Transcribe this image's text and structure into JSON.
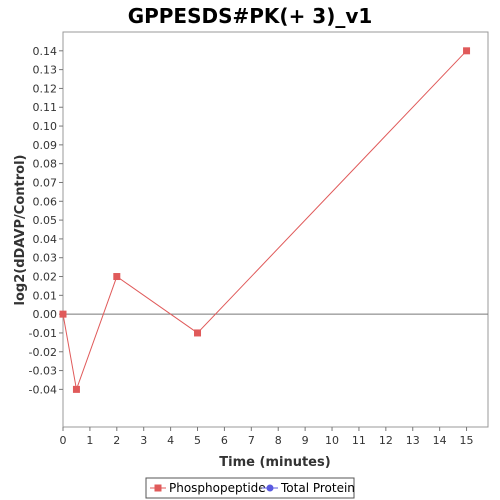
{
  "chart_data": {
    "type": "line",
    "title": "GPPESDS#PK(+ 3)_v1",
    "xlabel": "Time (minutes)",
    "ylabel": "log2(dDAVP/Control)",
    "xlim": [
      0,
      16
    ],
    "ylim": [
      -0.05,
      0.15
    ],
    "x_ticks": [
      0,
      1,
      2,
      3,
      4,
      5,
      6,
      7,
      8,
      9,
      10,
      11,
      12,
      13,
      14,
      15
    ],
    "y_ticks": [
      -0.04,
      -0.03,
      -0.02,
      -0.01,
      0.0,
      0.01,
      0.02,
      0.03,
      0.04,
      0.05,
      0.06,
      0.07,
      0.08,
      0.09,
      0.1,
      0.11,
      0.12,
      0.13,
      0.14
    ],
    "grid": false,
    "legend_position": "bottom",
    "series": [
      {
        "name": "Phosphopeptide",
        "color": "#e05a5a",
        "marker": "square",
        "points": [
          {
            "x": 0,
            "y": 0.0
          },
          {
            "x": 0.5,
            "y": -0.04
          },
          {
            "x": 2,
            "y": 0.02
          },
          {
            "x": 5,
            "y": -0.01
          },
          {
            "x": 15,
            "y": 0.14
          }
        ]
      },
      {
        "name": "Total Protein",
        "color": "#5a5ae0",
        "marker": "circle",
        "points": []
      }
    ]
  }
}
